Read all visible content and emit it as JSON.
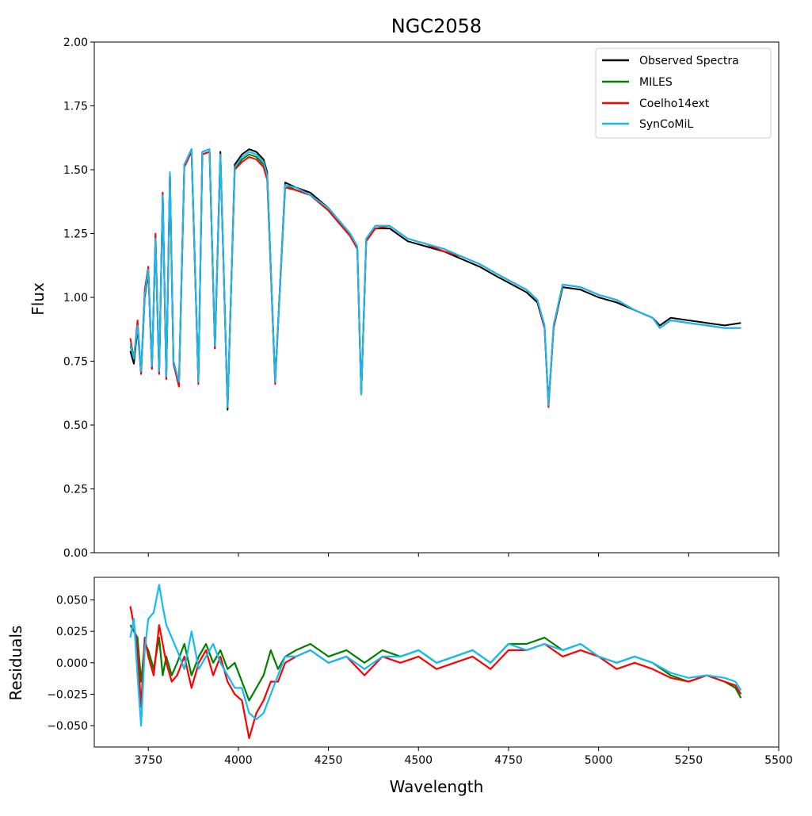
{
  "chart_data": [
    {
      "type": "line",
      "title": "NGC2058",
      "xlabel": "",
      "ylabel": "Flux",
      "xlim": [
        3600,
        5500
      ],
      "ylim": [
        0.0,
        2.0
      ],
      "yticks": [
        0.0,
        0.25,
        0.5,
        0.75,
        1.0,
        1.25,
        1.5,
        1.75,
        2.0
      ],
      "ytick_labels": [
        "0.00",
        "0.25",
        "0.50",
        "0.75",
        "1.00",
        "1.25",
        "1.50",
        "1.75",
        "2.00"
      ],
      "xticks": [
        3750,
        4000,
        4250,
        4500,
        4750,
        5000,
        5250,
        5500
      ],
      "legend_position": "top-right",
      "x": [
        3700,
        3710,
        3720,
        3730,
        3740,
        3750,
        3760,
        3770,
        3780,
        3790,
        3800,
        3810,
        3820,
        3835,
        3850,
        3870,
        3889,
        3900,
        3920,
        3935,
        3950,
        3970,
        3990,
        4010,
        4030,
        4050,
        4070,
        4080,
        4102,
        4130,
        4160,
        4200,
        4250,
        4280,
        4310,
        4330,
        4341,
        4355,
        4380,
        4420,
        4470,
        4520,
        4570,
        4620,
        4670,
        4720,
        4760,
        4800,
        4830,
        4850,
        4861,
        4875,
        4900,
        4950,
        5000,
        5050,
        5100,
        5150,
        5170,
        5200,
        5250,
        5300,
        5350,
        5395
      ],
      "series": [
        {
          "name": "Observed Spectra",
          "color": "#000000",
          "values": [
            0.79,
            0.74,
            0.88,
            0.7,
            1.0,
            1.1,
            0.72,
            1.22,
            0.7,
            1.4,
            0.68,
            1.48,
            0.74,
            0.66,
            1.52,
            1.58,
            0.67,
            1.57,
            1.58,
            0.8,
            1.57,
            0.56,
            1.52,
            1.56,
            1.58,
            1.57,
            1.54,
            1.49,
            0.67,
            1.45,
            1.43,
            1.41,
            1.35,
            1.3,
            1.25,
            1.2,
            0.62,
            1.22,
            1.27,
            1.27,
            1.22,
            1.2,
            1.18,
            1.15,
            1.12,
            1.08,
            1.05,
            1.02,
            0.98,
            0.88,
            0.58,
            0.88,
            1.04,
            1.03,
            1.0,
            0.98,
            0.95,
            0.92,
            0.89,
            0.92,
            0.91,
            0.9,
            0.89,
            0.9
          ]
        },
        {
          "name": "MILES",
          "color": "#008000",
          "values": [
            0.81,
            0.76,
            0.9,
            0.71,
            1.02,
            1.12,
            0.73,
            1.24,
            0.71,
            1.41,
            0.69,
            1.49,
            0.75,
            0.67,
            1.52,
            1.57,
            0.67,
            1.56,
            1.57,
            0.81,
            1.56,
            0.57,
            1.5,
            1.54,
            1.56,
            1.55,
            1.52,
            1.47,
            0.67,
            1.44,
            1.42,
            1.4,
            1.34,
            1.29,
            1.25,
            1.2,
            0.62,
            1.23,
            1.28,
            1.28,
            1.23,
            1.21,
            1.19,
            1.16,
            1.13,
            1.09,
            1.06,
            1.03,
            0.99,
            0.89,
            0.58,
            0.89,
            1.05,
            1.04,
            1.01,
            0.99,
            0.95,
            0.92,
            0.88,
            0.91,
            0.9,
            0.89,
            0.88,
            0.88
          ]
        },
        {
          "name": "Coelho14ext",
          "color": "#ff0000",
          "values": [
            0.84,
            0.76,
            0.91,
            0.7,
            1.03,
            1.12,
            0.72,
            1.25,
            0.7,
            1.41,
            0.68,
            1.48,
            0.74,
            0.65,
            1.51,
            1.57,
            0.66,
            1.56,
            1.57,
            0.8,
            1.55,
            0.57,
            1.5,
            1.53,
            1.55,
            1.54,
            1.51,
            1.46,
            0.66,
            1.43,
            1.42,
            1.4,
            1.34,
            1.29,
            1.24,
            1.19,
            0.62,
            1.22,
            1.27,
            1.28,
            1.23,
            1.21,
            1.18,
            1.16,
            1.13,
            1.09,
            1.06,
            1.03,
            0.99,
            0.88,
            0.57,
            0.88,
            1.05,
            1.04,
            1.01,
            0.99,
            0.95,
            0.92,
            0.88,
            0.91,
            0.9,
            0.89,
            0.88,
            0.88
          ]
        },
        {
          "name": "SynCoMiL",
          "color": "#12bcf5",
          "values": [
            0.82,
            0.76,
            0.89,
            0.71,
            1.01,
            1.11,
            0.73,
            1.23,
            0.71,
            1.4,
            0.69,
            1.49,
            0.75,
            0.67,
            1.52,
            1.58,
            0.67,
            1.57,
            1.58,
            0.81,
            1.56,
            0.57,
            1.51,
            1.55,
            1.57,
            1.56,
            1.53,
            1.48,
            0.67,
            1.44,
            1.43,
            1.4,
            1.35,
            1.3,
            1.25,
            1.2,
            0.62,
            1.23,
            1.28,
            1.28,
            1.23,
            1.21,
            1.19,
            1.16,
            1.13,
            1.09,
            1.06,
            1.03,
            0.99,
            0.89,
            0.58,
            0.89,
            1.05,
            1.04,
            1.01,
            0.99,
            0.95,
            0.92,
            0.88,
            0.91,
            0.9,
            0.89,
            0.88,
            0.88
          ]
        }
      ]
    },
    {
      "type": "line",
      "title": "",
      "xlabel": "Wavelength",
      "ylabel": "Residuals",
      "xlim": [
        3600,
        5500
      ],
      "ylim": [
        -0.067,
        0.068
      ],
      "yticks": [
        -0.05,
        -0.025,
        0.0,
        0.025,
        0.05
      ],
      "ytick_labels": [
        "−0.050",
        "−0.025",
        "0.000",
        "0.025",
        "0.050"
      ],
      "xticks": [
        3750,
        4000,
        4250,
        4500,
        4750,
        5000,
        5250,
        5500
      ],
      "xtick_labels": [
        "3750",
        "4000",
        "4250",
        "4500",
        "4750",
        "5000",
        "5250",
        "5500"
      ],
      "x": [
        3700,
        3710,
        3720,
        3730,
        3740,
        3750,
        3765,
        3780,
        3790,
        3800,
        3815,
        3830,
        3850,
        3870,
        3890,
        3910,
        3930,
        3950,
        3970,
        3990,
        4010,
        4030,
        4050,
        4070,
        4090,
        4110,
        4130,
        4160,
        4200,
        4250,
        4300,
        4350,
        4400,
        4450,
        4500,
        4550,
        4600,
        4650,
        4700,
        4750,
        4800,
        4850,
        4900,
        4950,
        5000,
        5050,
        5100,
        5150,
        5200,
        5250,
        5300,
        5350,
        5380,
        5395
      ],
      "series": [
        {
          "name": "MILES",
          "color": "#008000",
          "values": [
            0.03,
            0.025,
            0.02,
            -0.015,
            0.015,
            0.01,
            -0.005,
            0.02,
            -0.01,
            0.005,
            -0.01,
            0.0,
            0.015,
            -0.01,
            0.005,
            0.015,
            0.0,
            0.01,
            -0.005,
            0.0,
            -0.015,
            -0.03,
            -0.02,
            -0.01,
            0.01,
            -0.005,
            0.005,
            0.01,
            0.015,
            0.005,
            0.01,
            0.0,
            0.01,
            0.005,
            0.01,
            0.0,
            0.005,
            0.01,
            0.0,
            0.015,
            0.015,
            0.02,
            0.01,
            0.015,
            0.005,
            0.0,
            0.005,
            0.0,
            -0.01,
            -0.015,
            -0.01,
            -0.015,
            -0.02,
            -0.028
          ]
        },
        {
          "name": "Coelho14ext",
          "color": "#ff0000",
          "values": [
            0.045,
            0.03,
            0.01,
            -0.035,
            0.02,
            0.005,
            -0.01,
            0.03,
            0.015,
            0.0,
            -0.015,
            -0.01,
            0.005,
            -0.02,
            0.0,
            0.01,
            -0.01,
            0.005,
            -0.015,
            -0.025,
            -0.03,
            -0.06,
            -0.04,
            -0.03,
            -0.015,
            -0.015,
            0.0,
            0.005,
            0.01,
            0.0,
            0.005,
            -0.01,
            0.005,
            0.0,
            0.005,
            -0.005,
            0.0,
            0.005,
            -0.005,
            0.01,
            0.01,
            0.015,
            0.005,
            0.01,
            0.005,
            -0.005,
            0.0,
            -0.005,
            -0.012,
            -0.015,
            -0.01,
            -0.015,
            -0.018,
            -0.025
          ]
        },
        {
          "name": "SynCoMiL",
          "color": "#12bcf5",
          "values": [
            0.02,
            0.035,
            -0.01,
            -0.05,
            0.01,
            0.035,
            0.04,
            0.062,
            0.045,
            0.03,
            0.02,
            0.01,
            -0.005,
            0.025,
            -0.005,
            0.005,
            0.015,
            0.0,
            -0.01,
            -0.02,
            -0.02,
            -0.04,
            -0.045,
            -0.04,
            -0.025,
            -0.01,
            0.005,
            0.005,
            0.01,
            0.0,
            0.005,
            -0.005,
            0.005,
            0.005,
            0.01,
            0.0,
            0.005,
            0.01,
            0.0,
            0.015,
            0.01,
            0.015,
            0.01,
            0.015,
            0.005,
            0.0,
            0.005,
            0.0,
            -0.008,
            -0.012,
            -0.01,
            -0.012,
            -0.015,
            -0.022
          ]
        }
      ]
    }
  ]
}
